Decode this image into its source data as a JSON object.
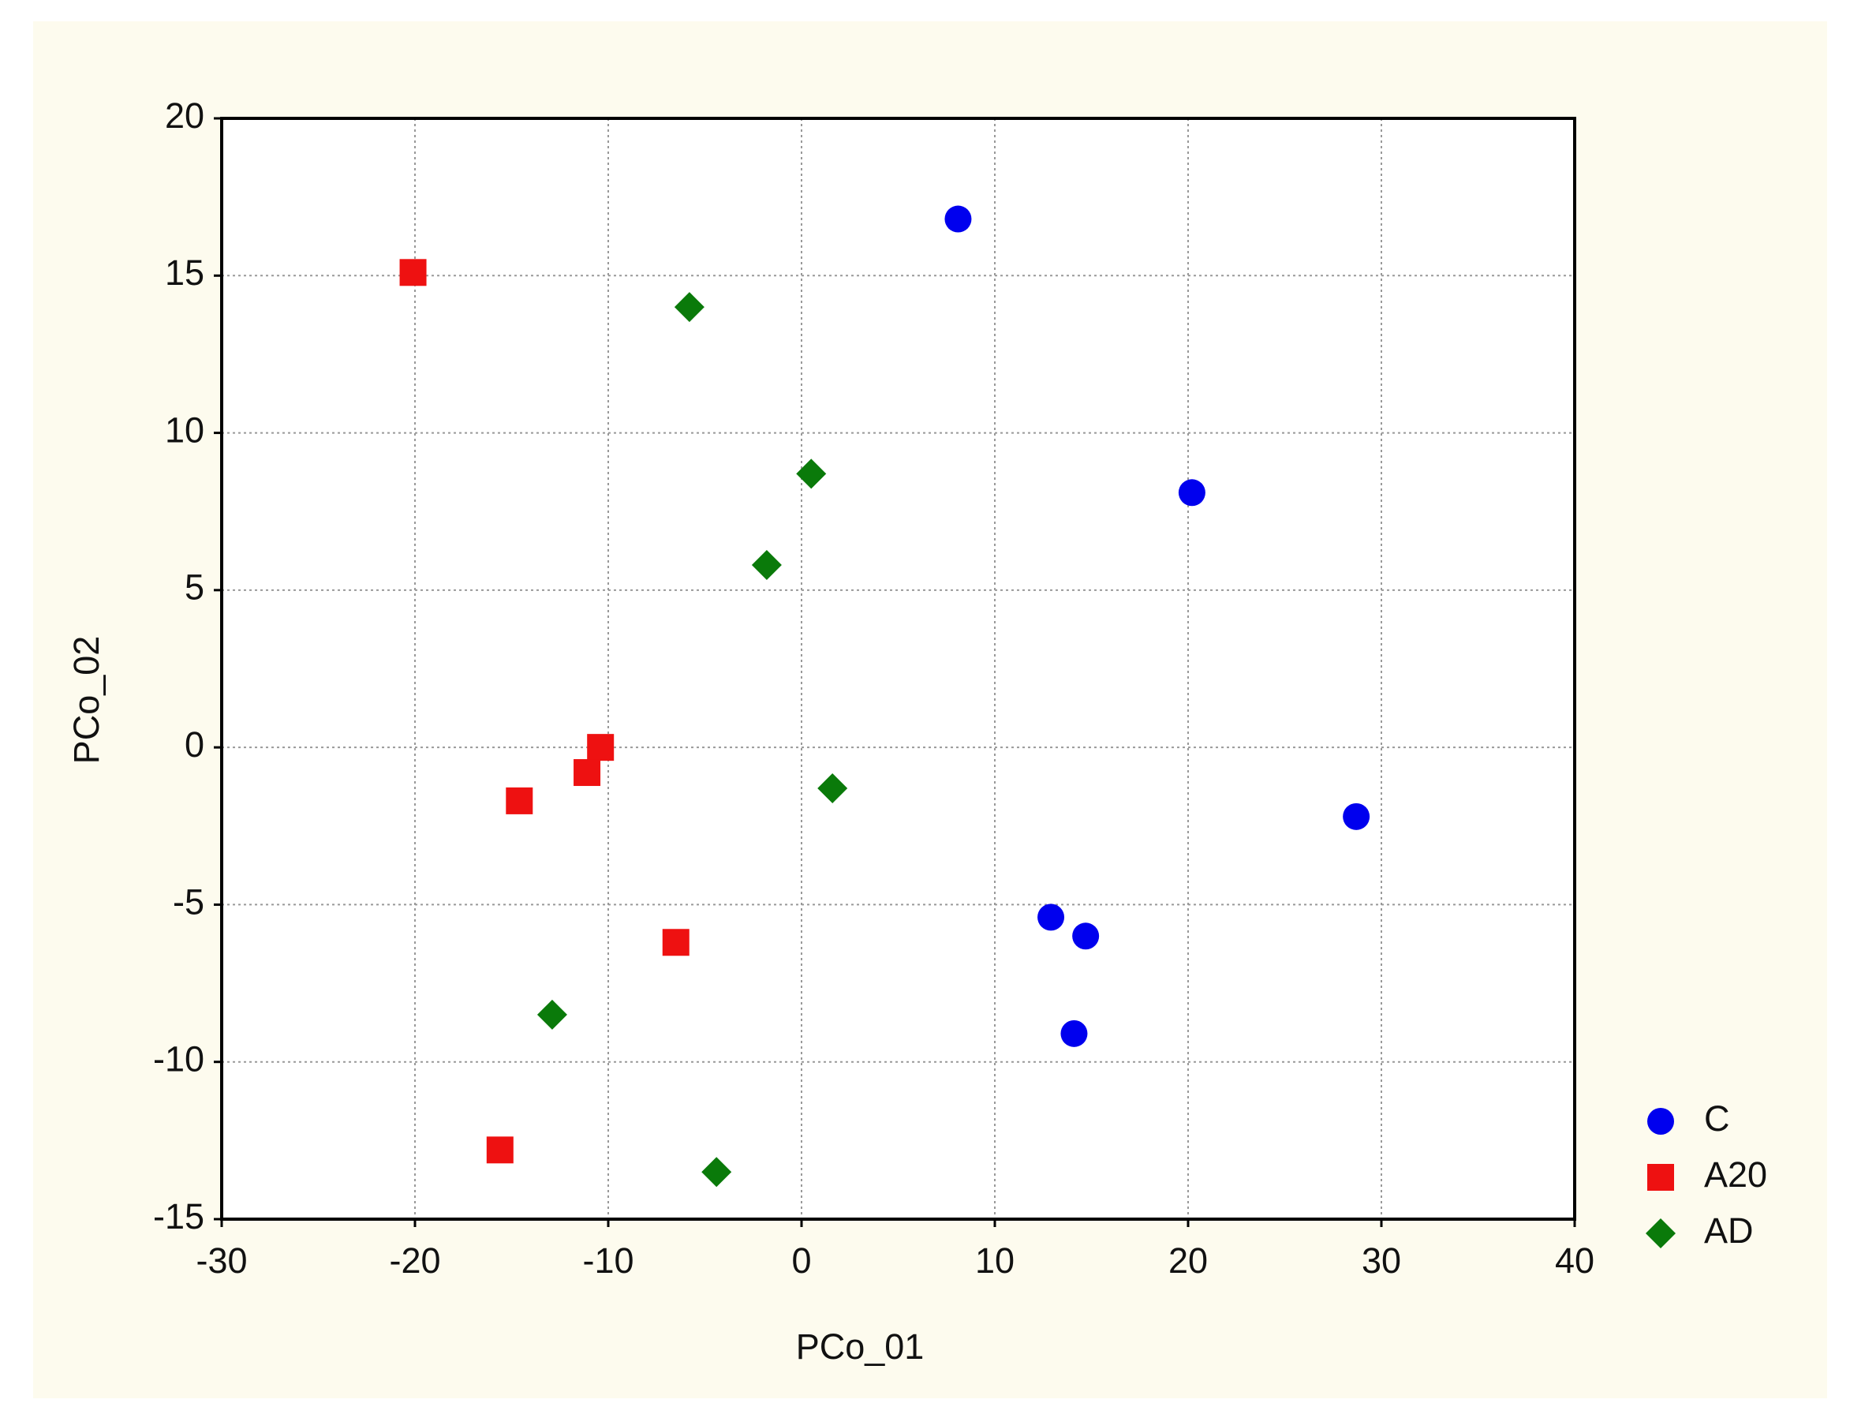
{
  "chart_data": {
    "type": "scatter",
    "xlabel": "PCo_01",
    "ylabel": "PCo_02",
    "xlim": [
      -30,
      40
    ],
    "xticks": [
      -30,
      -20,
      -10,
      0,
      10,
      20,
      30,
      40
    ],
    "ylim": [
      -15,
      20
    ],
    "yticks": [
      -15,
      -10,
      -5,
      0,
      5,
      10,
      15,
      20
    ],
    "grid": true,
    "legend": "right",
    "series": [
      {
        "name": "C",
        "color": "#0000ee",
        "marker": "circle",
        "x": [
          8.1,
          20.2,
          28.7,
          12.9,
          14.7,
          14.1
        ],
        "values": [
          16.8,
          8.1,
          -2.2,
          -5.4,
          -6.0,
          -9.1
        ]
      },
      {
        "name": "A20",
        "color": "#ee1111",
        "marker": "square",
        "x": [
          -20.1,
          -10.4,
          -11.1,
          -14.6,
          -6.5,
          -15.6
        ],
        "values": [
          15.1,
          0.0,
          -0.8,
          -1.7,
          -6.2,
          -12.8
        ]
      },
      {
        "name": "AD",
        "color": "#0a7a0a",
        "marker": "diamond",
        "x": [
          -5.8,
          0.5,
          -1.8,
          1.6,
          -12.9,
          -4.4
        ],
        "values": [
          14.0,
          8.7,
          5.8,
          -1.3,
          -8.5,
          -13.5
        ]
      }
    ]
  }
}
